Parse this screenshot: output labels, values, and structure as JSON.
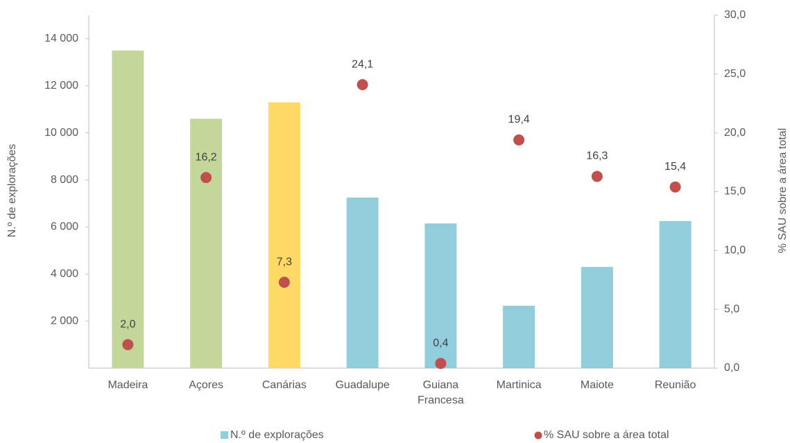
{
  "chart_data": {
    "type": "bar_scatter",
    "categories": [
      "Madeira",
      "Açores",
      "Canárias",
      "Guadalupe",
      "Guiana Francesa",
      "Martinica",
      "Maiote",
      "Reunião"
    ],
    "series": [
      {
        "name": "N.º de explorações",
        "type": "bar",
        "color": "#92cddc",
        "colors": [
          "#c4d79b",
          "#c4d79b",
          "#ffd966",
          "#92cddc",
          "#92cddc",
          "#92cddc",
          "#92cddc",
          "#92cddc"
        ],
        "values": [
          13500,
          10600,
          11300,
          7250,
          6150,
          2650,
          4300,
          6250
        ]
      },
      {
        "name": "% SAU sobre a área total",
        "type": "scatter",
        "axis": "y2",
        "color": "#c0504d",
        "values": [
          2.0,
          16.2,
          7.3,
          24.1,
          0.4,
          19.4,
          16.3,
          15.4
        ],
        "value_labels": [
          "2,0",
          "16,2",
          "7,3",
          "24,1",
          "0,4",
          "19,4",
          "16,3",
          "15,4"
        ]
      }
    ],
    "ylabel": "N.º de explorações",
    "y2label": "% SAU sobre a área total",
    "ylim": [
      0,
      15000
    ],
    "yticks": [
      {
        "value": 2000,
        "label": "2 000"
      },
      {
        "value": 4000,
        "label": "4 000"
      },
      {
        "value": 6000,
        "label": "6 000"
      },
      {
        "value": 8000,
        "label": "8 000"
      },
      {
        "value": 10000,
        "label": "10 000"
      },
      {
        "value": 12000,
        "label": "12 000"
      },
      {
        "value": 14000,
        "label": "14 000"
      }
    ],
    "y2lim": [
      0,
      30
    ],
    "y2ticks": [
      {
        "value": 0,
        "label": "0,0"
      },
      {
        "value": 5,
        "label": "5,0"
      },
      {
        "value": 10,
        "label": "10,0"
      },
      {
        "value": 15,
        "label": "15,0"
      },
      {
        "value": 20,
        "label": "20,0"
      },
      {
        "value": 25,
        "label": "25,0"
      },
      {
        "value": 30,
        "label": "30,0"
      }
    ],
    "legend": "bottom",
    "grid": false
  }
}
